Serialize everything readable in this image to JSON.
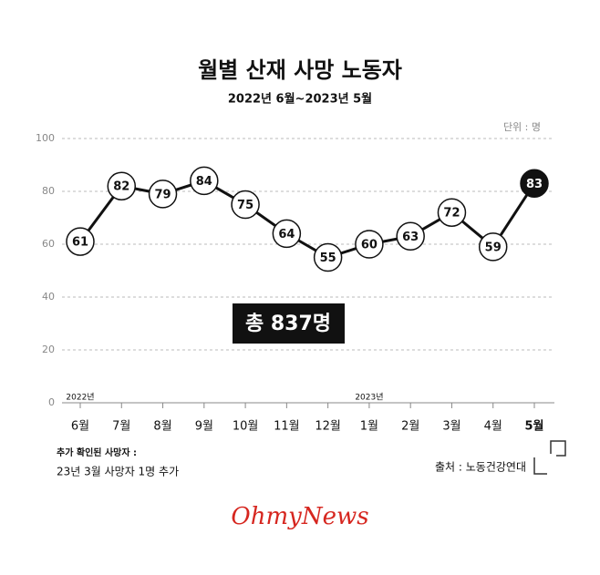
{
  "chart_data": {
    "type": "line",
    "title": "월별 산재 사망 노동자",
    "subtitle": "2022년 6월~2023년 5월",
    "unit": "단위 : 명",
    "categories": [
      "6월",
      "7월",
      "8월",
      "9월",
      "10월",
      "11월",
      "12월",
      "1월",
      "2월",
      "3월",
      "4월",
      "5월"
    ],
    "year_labels": [
      "2022년",
      null,
      null,
      null,
      null,
      null,
      null,
      "2023년",
      null,
      null,
      null,
      null
    ],
    "series": [
      {
        "name": "사망 노동자",
        "color": "#111111",
        "values": [
          61,
          82,
          79,
          84,
          75,
          64,
          55,
          60,
          63,
          72,
          59,
          83
        ]
      }
    ],
    "ylim": [
      0,
      100
    ],
    "yticks": [
      0,
      20,
      40,
      60,
      80,
      100
    ],
    "grid": true,
    "annotation": "총 837명",
    "note_title": "추가 확인된 사망자 :",
    "note": "23년 3월 사망자 1명 추가",
    "source": "출처 : 노동건강연대",
    "logo": "OhmyNews"
  }
}
